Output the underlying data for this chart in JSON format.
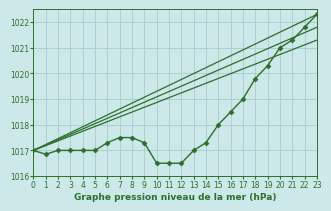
{
  "title": "Graphe pression niveau de la mer (hPa)",
  "bg_color": "#cce8e8",
  "grid_color": "#aacccc",
  "line_color": "#2d6e2d",
  "xlim": [
    0,
    23
  ],
  "ylim": [
    1016.0,
    1022.5
  ],
  "yticks": [
    1016,
    1017,
    1018,
    1019,
    1020,
    1021,
    1022
  ],
  "xticks": [
    0,
    1,
    2,
    3,
    4,
    5,
    6,
    7,
    8,
    9,
    10,
    11,
    12,
    13,
    14,
    15,
    16,
    17,
    18,
    19,
    20,
    21,
    22,
    23
  ],
  "series1_x": [
    0,
    1,
    2,
    3,
    4,
    5,
    6,
    7,
    8,
    9,
    10,
    11,
    12,
    13,
    14,
    15,
    16,
    17,
    18,
    19,
    20,
    21,
    22,
    23
  ],
  "series1_y": [
    1017.0,
    1016.85,
    1017.0,
    1017.0,
    1017.0,
    1017.0,
    1017.3,
    1017.5,
    1017.5,
    1017.3,
    1016.5,
    1016.5,
    1016.5,
    1017.0,
    1017.3,
    1018.0,
    1018.5,
    1019.0,
    1019.8,
    1020.3,
    1021.0,
    1021.3,
    1021.8,
    1022.3
  ],
  "series2_x": [
    0,
    23
  ],
  "series2_y": [
    1017.0,
    1022.3
  ],
  "series3_x": [
    0,
    23
  ],
  "series3_y": [
    1017.0,
    1021.8
  ],
  "series4_x": [
    0,
    23
  ],
  "series4_y": [
    1017.0,
    1021.3
  ]
}
